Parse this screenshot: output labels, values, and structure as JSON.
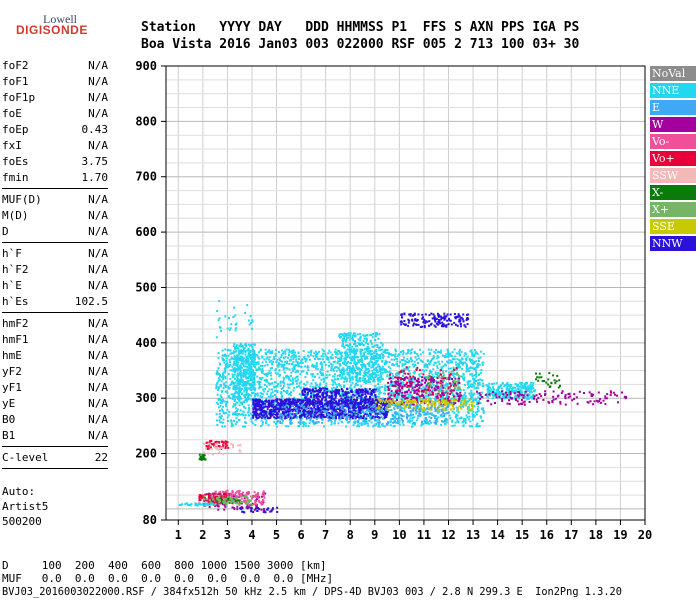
{
  "logo": {
    "line1": "Lowell",
    "line2": "DIGISONDE"
  },
  "header": {
    "line1": "Station   YYYY DAY   DDD HHMMSS P1  FFS S AXN PPS IGA PS",
    "line2": "Boa Vista 2016 Jan03 003 022000 RSF 005 2 713 100 03+ 30"
  },
  "params": [
    [
      {
        "k": "foF2",
        "v": "N/A"
      },
      {
        "k": "foF1",
        "v": "N/A"
      },
      {
        "k": "foF1p",
        "v": "N/A"
      },
      {
        "k": "foE",
        "v": "N/A"
      },
      {
        "k": "foEp",
        "v": "0.43"
      },
      {
        "k": "fxI",
        "v": "N/A"
      },
      {
        "k": "foEs",
        "v": "3.75"
      },
      {
        "k": "fmin",
        "v": "1.70"
      }
    ],
    [
      {
        "k": "MUF(D)",
        "v": "N/A"
      },
      {
        "k": "M(D)",
        "v": "N/A"
      },
      {
        "k": "D",
        "v": "N/A"
      }
    ],
    [
      {
        "k": "h`F",
        "v": "N/A"
      },
      {
        "k": "h`F2",
        "v": "N/A"
      },
      {
        "k": "h`E",
        "v": "N/A"
      },
      {
        "k": "h`Es",
        "v": "102.5"
      }
    ],
    [
      {
        "k": "hmF2",
        "v": "N/A"
      },
      {
        "k": "hmF1",
        "v": "N/A"
      },
      {
        "k": "hmE",
        "v": "N/A"
      },
      {
        "k": "yF2",
        "v": "N/A"
      },
      {
        "k": "yF1",
        "v": "N/A"
      },
      {
        "k": "yE",
        "v": "N/A"
      },
      {
        "k": "B0",
        "v": "N/A"
      },
      {
        "k": "B1",
        "v": "N/A"
      }
    ],
    [
      {
        "k": "C-level",
        "v": "22"
      }
    ]
  ],
  "auto": {
    "l1": "Auto:",
    "l2": "Artist5",
    "l3": "500200"
  },
  "footer": {
    "d_line": "D     100  200  400  600  800 1000 1500 3000 [km]",
    "muf_line": "MUF   0.0  0.0  0.0  0.0  0.0  0.0  0.0  0.0 [MHz]",
    "info_line": "BVJ03_2016003022000.RSF / 384fx512h 50 kHz 2.5 km / DPS-4D BVJ03 003 / 2.8 N 299.3 E  Ion2Png 1.3.20"
  },
  "legend": [
    {
      "label": "NoVal",
      "color": "#8c8c8c"
    },
    {
      "label": "NNE",
      "color": "#22d8f0"
    },
    {
      "label": "E",
      "color": "#3fa9f5"
    },
    {
      "label": "W",
      "color": "#a3009e"
    },
    {
      "label": "Vo-",
      "color": "#f0509a"
    },
    {
      "label": "Vo+",
      "color": "#e8003a"
    },
    {
      "label": "SSW",
      "color": "#f4b8b8"
    },
    {
      "label": "X-",
      "color": "#0a7a0a"
    },
    {
      "label": "X+",
      "color": "#77b566"
    },
    {
      "label": "SSE",
      "color": "#c9c900"
    },
    {
      "label": "NNW",
      "color": "#2a12d8"
    }
  ],
  "chart_data": {
    "type": "scatter",
    "xlabel": "",
    "ylabel": "",
    "xlim": [
      0.5,
      20
    ],
    "ylim": [
      80,
      900
    ],
    "x_ticks": [
      1,
      2,
      3,
      4,
      5,
      6,
      7,
      8,
      9,
      10,
      11,
      12,
      13,
      14,
      15,
      16,
      17,
      18,
      19,
      20
    ],
    "y_ticks": [
      80,
      200,
      300,
      400,
      500,
      600,
      700,
      800,
      900
    ],
    "grid": true,
    "legend_position": "right",
    "clusters": [
      {
        "series": "NNE",
        "x": [
          2.5,
          13.4
        ],
        "y": [
          250,
          390
        ],
        "n": 2600
      },
      {
        "series": "NNE",
        "x": [
          3.2,
          4.1
        ],
        "y": [
          290,
          400
        ],
        "n": 350
      },
      {
        "series": "NNE",
        "x": [
          7.5,
          9.3
        ],
        "y": [
          330,
          420
        ],
        "n": 350
      },
      {
        "series": "NNE",
        "x": [
          13.5,
          15.5
        ],
        "y": [
          300,
          330
        ],
        "n": 250
      },
      {
        "series": "NNE",
        "x": [
          2.5,
          4.0
        ],
        "y": [
          410,
          480
        ],
        "n": 30
      },
      {
        "series": "NNW",
        "x": [
          4.0,
          9.5
        ],
        "y": [
          265,
          300
        ],
        "n": 1000
      },
      {
        "series": "NNW",
        "x": [
          10.0,
          12.8
        ],
        "y": [
          430,
          455
        ],
        "n": 150
      },
      {
        "series": "NNW",
        "x": [
          6.0,
          9.0
        ],
        "y": [
          300,
          320
        ],
        "n": 200
      },
      {
        "series": "W",
        "x": [
          9.5,
          12.5
        ],
        "y": [
          290,
          340
        ],
        "n": 260
      },
      {
        "series": "W",
        "x": [
          13.0,
          19.2
        ],
        "y": [
          290,
          315
        ],
        "n": 130
      },
      {
        "series": "W",
        "x": [
          2.0,
          4.5
        ],
        "y": [
          100,
          130
        ],
        "n": 120
      },
      {
        "series": "Vo-",
        "x": [
          2.2,
          4.5
        ],
        "y": [
          110,
          135
        ],
        "n": 120
      },
      {
        "series": "Vo+",
        "x": [
          1.8,
          3.0
        ],
        "y": [
          110,
          130
        ],
        "n": 60
      },
      {
        "series": "Vo+",
        "x": [
          2.1,
          3.0
        ],
        "y": [
          210,
          225
        ],
        "n": 50
      },
      {
        "series": "Vo+",
        "x": [
          9.5,
          12.5
        ],
        "y": [
          295,
          360
        ],
        "n": 60
      },
      {
        "series": "SSE",
        "x": [
          9.0,
          13.0
        ],
        "y": [
          280,
          300
        ],
        "n": 180
      },
      {
        "series": "X-",
        "x": [
          1.8,
          2.1
        ],
        "y": [
          190,
          200
        ],
        "n": 25
      },
      {
        "series": "X-",
        "x": [
          2.5,
          3.5
        ],
        "y": [
          112,
          122
        ],
        "n": 30
      },
      {
        "series": "X-",
        "x": [
          15.5,
          16.5
        ],
        "y": [
          320,
          350
        ],
        "n": 25
      },
      {
        "series": "X+",
        "x": [
          2.0,
          4.0
        ],
        "y": [
          108,
          125
        ],
        "n": 60
      },
      {
        "series": "X+",
        "x": [
          11.0,
          12.5
        ],
        "y": [
          310,
          350
        ],
        "n": 40
      },
      {
        "series": "SSW",
        "x": [
          2.0,
          3.5
        ],
        "y": [
          200,
          220
        ],
        "n": 30
      },
      {
        "series": "E",
        "x": [
          5.0,
          12.0
        ],
        "y": [
          255,
          290
        ],
        "n": 250
      },
      {
        "series": "NNE",
        "x": [
          1.0,
          2.5
        ],
        "y": [
          108,
          112
        ],
        "n": 40
      },
      {
        "series": "NNW",
        "x": [
          3.5,
          5.0
        ],
        "y": [
          95,
          105
        ],
        "n": 30
      }
    ]
  }
}
